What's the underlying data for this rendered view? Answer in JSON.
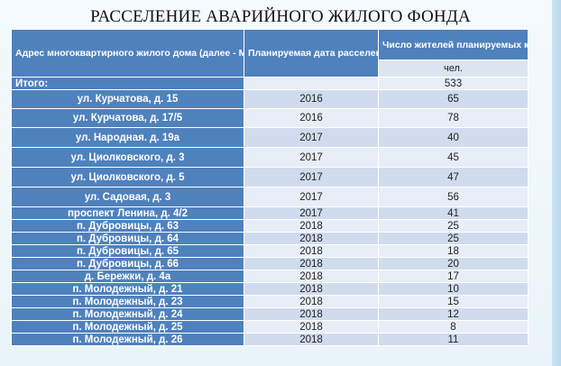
{
  "title": "РАССЕЛЕНИЕ АВАРИЙНОГО ЖИЛОГО ФОНДА",
  "table": {
    "headers": {
      "address": "Адрес многоквартирного жилого дома (далее - МКД)",
      "date": "Планируемая дата расселения МКД",
      "residents": "Число жителей планируемых к переселению"
    },
    "unit": "чел.",
    "total": {
      "label": "Итого:",
      "value": "533"
    },
    "rows": [
      {
        "address": "ул. Курчатова, д. 15",
        "year": "2016",
        "count": "65"
      },
      {
        "address": "ул. Курчатова, д. 17/5",
        "year": "2016",
        "count": "78"
      },
      {
        "address": "ул. Народная. д. 19а",
        "year": "2017",
        "count": "40"
      },
      {
        "address": "ул. Циолковского, д. 3",
        "year": "2017",
        "count": "45"
      },
      {
        "address": "ул. Циолковского, д. 5",
        "year": "2017",
        "count": "47"
      },
      {
        "address": "ул. Садовая, д. 3",
        "year": "2017",
        "count": "56"
      },
      {
        "address": "проспект Ленина, д. 4/2",
        "year": "2017",
        "count": "41"
      },
      {
        "address": "п. Дубровицы, д. 63",
        "year": "2018",
        "count": "25"
      },
      {
        "address": "п. Дубровицы, д. 64",
        "year": "2018",
        "count": "25"
      },
      {
        "address": "п. Дубровицы, д. 65",
        "year": "2018",
        "count": "18"
      },
      {
        "address": "п. Дубровицы, д. 66",
        "year": "2018",
        "count": "20"
      },
      {
        "address": "д. Бережки, д. 4а",
        "year": "2018",
        "count": "17"
      },
      {
        "address": "п. Молодежный, д. 21",
        "year": "2018",
        "count": "10"
      },
      {
        "address": "п. Молодежный, д. 23",
        "year": "2018",
        "count": "15"
      },
      {
        "address": "п. Молодежный, д. 24",
        "year": "2018",
        "count": "12"
      },
      {
        "address": "п. Молодежный, д. 25",
        "year": "2018",
        "count": "8"
      },
      {
        "address": "п. Молодежный, д. 26",
        "year": "2018",
        "count": "11"
      }
    ]
  }
}
